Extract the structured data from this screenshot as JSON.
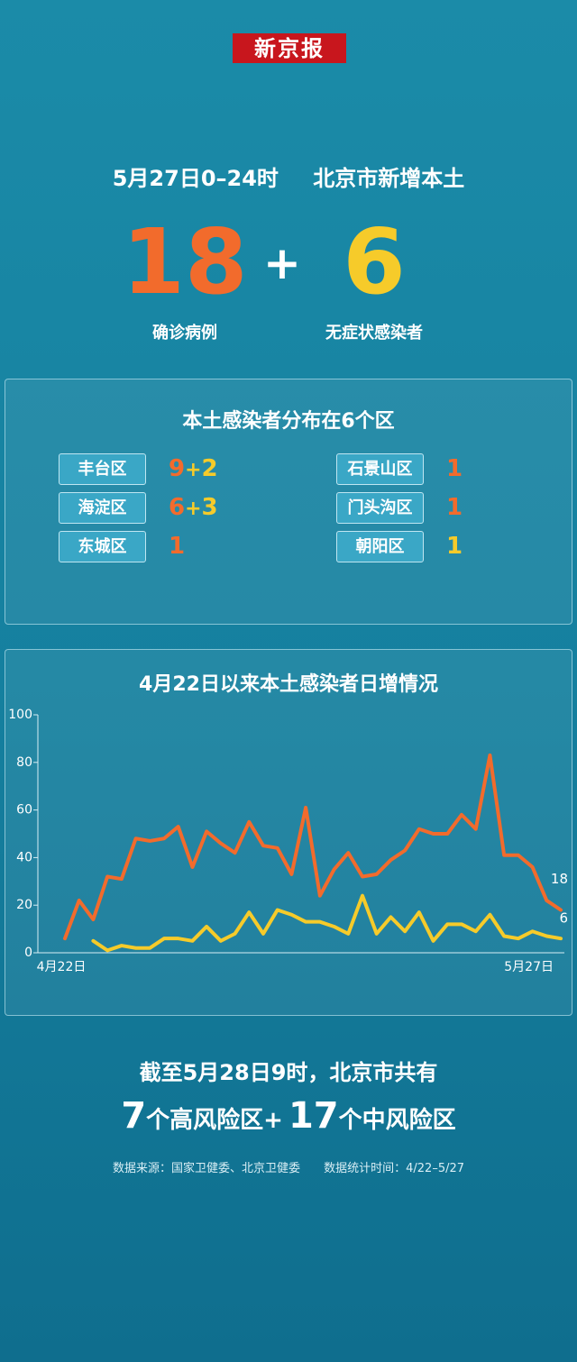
{
  "logo": "新京报",
  "headline": {
    "date": "5月27日0–24时",
    "region": "北京市新增本土"
  },
  "summary": {
    "confirmed": 18,
    "plus_sign": "+",
    "asymptomatic": 6,
    "confirmed_label": "确诊病例",
    "asymptomatic_label": "无症状感染者"
  },
  "districts_panel": {
    "title": "本土感染者分布在6个区",
    "plus_sign": "+",
    "districts": [
      {
        "name": "丰台区",
        "confirmed": 9,
        "asymptomatic": 2
      },
      {
        "name": "海淀区",
        "confirmed": 6,
        "asymptomatic": 3
      },
      {
        "name": "东城区",
        "confirmed": 1
      },
      {
        "name": "石景山区",
        "confirmed": 1
      },
      {
        "name": "门头沟区",
        "confirmed": 1
      },
      {
        "name": "朝阳区",
        "asymptomatic": 1
      }
    ]
  },
  "chart_data": {
    "type": "line",
    "title": "4月22日以来本土感染者日增情况",
    "categories": [
      "4月22日",
      null,
      null,
      null,
      null,
      null,
      null,
      null,
      null,
      null,
      null,
      null,
      null,
      null,
      null,
      null,
      null,
      null,
      null,
      null,
      null,
      null,
      null,
      null,
      null,
      null,
      null,
      null,
      null,
      null,
      null,
      null,
      null,
      null,
      null,
      "5月27日"
    ],
    "series": [
      {
        "color": "#f26b2c",
        "values": [
          6,
          22,
          14,
          32,
          31,
          48,
          47,
          48,
          53,
          36,
          51,
          46,
          42,
          55,
          45,
          44,
          33,
          61,
          24,
          35,
          42,
          32,
          33,
          39,
          43,
          52,
          50,
          50,
          58,
          52,
          83,
          41,
          41,
          36,
          22,
          18
        ]
      },
      {
        "color": "#f6cb2a",
        "values": [
          null,
          null,
          5,
          1,
          3,
          2,
          2,
          6,
          6,
          5,
          11,
          5,
          8,
          17,
          8,
          18,
          16,
          13,
          13,
          11,
          8,
          24,
          8,
          15,
          9,
          17,
          5,
          12,
          12,
          9,
          16,
          7,
          6,
          9,
          7,
          6
        ]
      }
    ],
    "ylim": [
      0,
      100
    ],
    "yticks": [
      0,
      20,
      40,
      60,
      80,
      100
    ],
    "grid": false
  },
  "risk_summary": {
    "line1": "截至5月28日9时，北京市共有",
    "high_count": 7,
    "high_text": "个高风险区+",
    "mid_count": 17,
    "mid_text": "个中风险区"
  },
  "footer": {
    "source": "数据来源：国家卫健委、北京卫健委",
    "period": "数据统计时间：4/22–5/27"
  }
}
